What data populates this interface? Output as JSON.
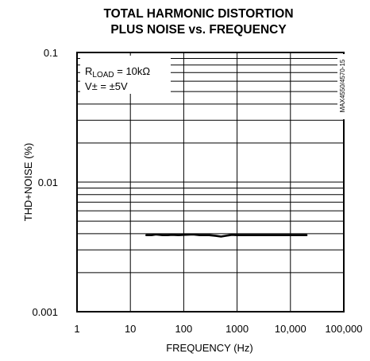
{
  "chart_data": {
    "type": "line",
    "title_line1": "TOTAL HARMONIC DISTORTION",
    "title_line2": "PLUS NOISE vs. FREQUENCY",
    "xlabel": "FREQUENCY (Hz)",
    "ylabel": "THD+NOISE (%)",
    "x_scale": "log",
    "y_scale": "log",
    "xlim": [
      1,
      100000
    ],
    "ylim": [
      0.001,
      0.1
    ],
    "x_ticks": [
      1,
      10,
      100,
      1000,
      10000,
      100000
    ],
    "x_tick_labels": [
      "1",
      "10",
      "100",
      "1000",
      "10,000",
      "100,000"
    ],
    "y_ticks": [
      0.001,
      0.01,
      0.1
    ],
    "y_tick_labels": [
      "0.001",
      "0.01",
      "0.1"
    ],
    "grid": true,
    "annotation": {
      "r_main": "R",
      "r_sub": "LOAD",
      "r_rest": " = 10kΩ",
      "v": "V± = ±5V"
    },
    "part_code": "MAX4550/4570-15",
    "series": [
      {
        "x": [
          20,
          25,
          30,
          40,
          50,
          60,
          80,
          100,
          150,
          200,
          300,
          400,
          500,
          600,
          800,
          1000,
          1500,
          2000,
          3000,
          5000,
          8000,
          10000,
          15000,
          20000
        ],
        "values": [
          0.0039,
          0.0039,
          0.00395,
          0.0039,
          0.0039,
          0.00392,
          0.0039,
          0.00392,
          0.00395,
          0.0039,
          0.0039,
          0.00385,
          0.0038,
          0.00385,
          0.00392,
          0.0039,
          0.0039,
          0.0039,
          0.0039,
          0.0039,
          0.0039,
          0.0039,
          0.0039,
          0.0039
        ]
      }
    ]
  }
}
